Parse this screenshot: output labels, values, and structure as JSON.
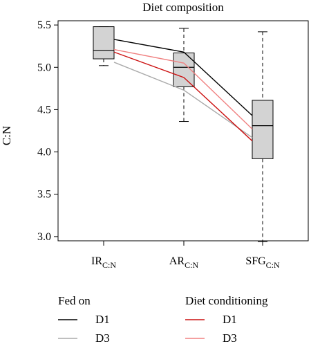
{
  "chart_data": {
    "type": "box",
    "title": "Diet composition",
    "ylabel": "C:N",
    "xlabel": "",
    "ylim": [
      2.95,
      5.55
    ],
    "y_ticks": [
      "3.0",
      "3.5",
      "4.0",
      "4.5",
      "5.0",
      "5.5"
    ],
    "categories": [
      {
        "main": "IR",
        "sub": "C:N"
      },
      {
        "main": "AR",
        "sub": "C:N"
      },
      {
        "main": "SFG",
        "sub": "C:N"
      }
    ],
    "boxes": [
      {
        "category": "IR",
        "whisker_low": 5.02,
        "q1": 5.1,
        "median": 5.2,
        "q3": 5.48,
        "whisker_high": 5.48
      },
      {
        "category": "AR",
        "whisker_low": 4.36,
        "q1": 4.77,
        "median": 5.0,
        "q3": 5.17,
        "whisker_high": 5.46
      },
      {
        "category": "SFG",
        "whisker_low": 2.94,
        "q1": 3.92,
        "median": 4.31,
        "q3": 4.61,
        "whisker_high": 5.42
      }
    ],
    "series": [
      {
        "name": "D1",
        "group": "Fed on",
        "color": "#000000",
        "values": [
          5.33,
          5.18,
          4.43
        ]
      },
      {
        "name": "D3",
        "group": "Fed on",
        "color": "#aaaaaa",
        "values": [
          5.06,
          4.73,
          4.17
        ]
      },
      {
        "name": "D1",
        "group": "Diet conditioning",
        "color": "#cc1111",
        "values": [
          5.18,
          4.88,
          4.13
        ]
      },
      {
        "name": "D3",
        "group": "Diet conditioning",
        "color": "#f08080",
        "values": [
          5.21,
          5.05,
          4.27
        ]
      }
    ],
    "legend": {
      "placement": "bottom",
      "groups": [
        {
          "title": "Fed on",
          "entries": [
            {
              "label": "D1",
              "color": "#000000"
            },
            {
              "label": "D3",
              "color": "#aaaaaa"
            }
          ]
        },
        {
          "title": "Diet conditioning",
          "entries": [
            {
              "label": "D1",
              "color": "#cc1111"
            },
            {
              "label": "D3",
              "color": "#f08080"
            }
          ]
        }
      ]
    },
    "grid": false,
    "box_fill": "#d3d3d3"
  }
}
